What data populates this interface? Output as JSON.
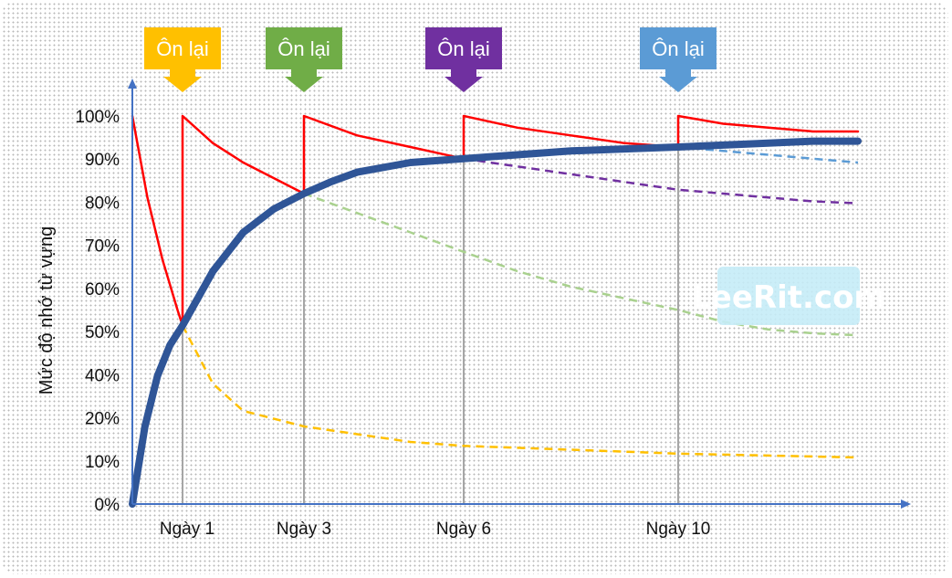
{
  "chart_data": {
    "type": "line",
    "ylabel": "Mức độ nhớ từ vựng",
    "y_ticks": [
      "0%",
      "10%",
      "20%",
      "40%",
      "50%",
      "60%",
      "70%",
      "80%",
      "90%",
      "100%"
    ],
    "ylim": [
      0,
      100
    ],
    "x_range_days": [
      0,
      14
    ],
    "review_days": [
      1,
      3,
      6,
      10
    ],
    "x_tick_labels": [
      "Ngày 1",
      "Ngày 3",
      "Ngày 6",
      "Ngày 10"
    ],
    "review_label": "Ôn lại",
    "review_colors": [
      "#ffc000",
      "#70ad47",
      "#7030a0",
      "#5b9bd5"
    ],
    "watermark": "LeeRit.com",
    "series": [
      {
        "color": "#ff0000",
        "style": "solid",
        "points": [
          [
            0,
            100
          ],
          [
            0.3,
            79
          ],
          [
            0.6,
            63
          ],
          [
            0.9,
            50
          ],
          [
            1,
            46
          ],
          [
            1,
            100
          ],
          [
            1.5,
            93
          ],
          [
            2,
            88
          ],
          [
            2.5,
            84
          ],
          [
            3,
            80
          ],
          [
            3,
            100
          ],
          [
            4,
            95
          ],
          [
            5,
            92
          ],
          [
            6,
            89
          ],
          [
            6,
            100
          ],
          [
            7,
            97
          ],
          [
            8,
            95
          ],
          [
            9,
            93
          ],
          [
            10,
            92
          ],
          [
            10,
            100
          ],
          [
            11,
            98
          ],
          [
            12,
            97
          ],
          [
            13,
            96
          ],
          [
            14,
            96
          ]
        ]
      },
      {
        "color": "#2f5597",
        "style": "bold",
        "points": [
          [
            0,
            0
          ],
          [
            0.25,
            20
          ],
          [
            0.5,
            33
          ],
          [
            0.75,
            41
          ],
          [
            1,
            46
          ],
          [
            1.5,
            60
          ],
          [
            2,
            70
          ],
          [
            2.5,
            76
          ],
          [
            3,
            80
          ],
          [
            3.5,
            83
          ],
          [
            4,
            85.5
          ],
          [
            5,
            88
          ],
          [
            6,
            89
          ],
          [
            7,
            90
          ],
          [
            8,
            91
          ],
          [
            9,
            91.5
          ],
          [
            10,
            92
          ],
          [
            11,
            92.5
          ],
          [
            12,
            93
          ],
          [
            13,
            93.5
          ],
          [
            14,
            93.5
          ]
        ]
      },
      {
        "color": "#ffc000",
        "style": "dashed",
        "points": [
          [
            1,
            46
          ],
          [
            1.5,
            31
          ],
          [
            2,
            24
          ],
          [
            3,
            20
          ],
          [
            4,
            18
          ],
          [
            5,
            16
          ],
          [
            6,
            15
          ],
          [
            8,
            14
          ],
          [
            10,
            13
          ],
          [
            12,
            12.5
          ],
          [
            14,
            12
          ]
        ]
      },
      {
        "color": "#a9d18e",
        "style": "dashed",
        "points": [
          [
            3,
            80
          ],
          [
            4,
            75
          ],
          [
            5,
            70
          ],
          [
            6,
            65
          ],
          [
            7,
            60
          ],
          [
            8,
            56
          ],
          [
            9,
            53
          ],
          [
            10,
            50
          ],
          [
            11,
            47
          ],
          [
            12,
            45
          ],
          [
            13,
            44
          ],
          [
            14,
            43.5
          ]
        ]
      },
      {
        "color": "#7030a0",
        "style": "dashed",
        "points": [
          [
            6,
            89
          ],
          [
            7,
            87
          ],
          [
            8,
            85
          ],
          [
            9,
            83
          ],
          [
            10,
            81
          ],
          [
            11,
            80
          ],
          [
            12,
            79
          ],
          [
            13,
            78
          ],
          [
            14,
            77.5
          ]
        ]
      },
      {
        "color": "#5b9bd5",
        "style": "dashed",
        "points": [
          [
            10,
            92
          ],
          [
            11,
            91
          ],
          [
            12,
            90
          ],
          [
            13,
            89
          ],
          [
            14,
            88
          ]
        ]
      }
    ]
  }
}
